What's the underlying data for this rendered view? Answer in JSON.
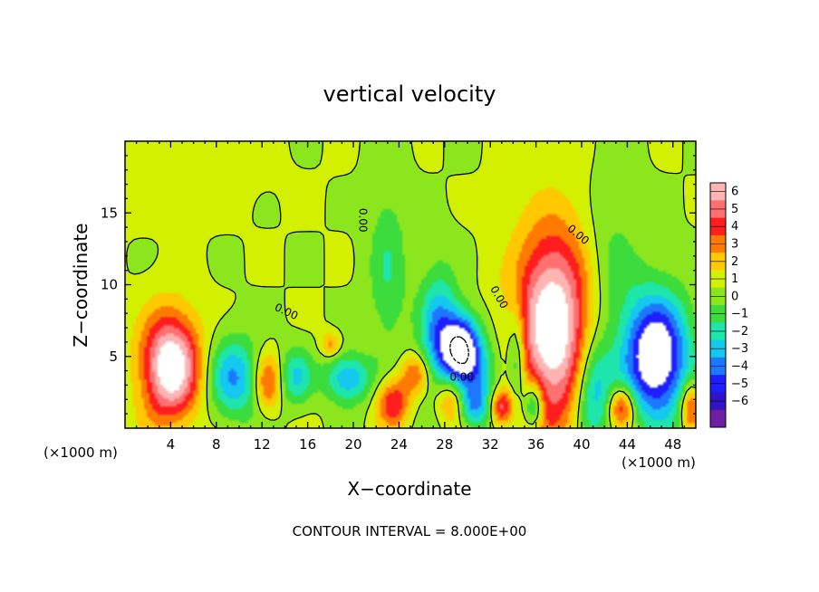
{
  "chart_data": {
    "type": "heatmap",
    "title": "vertical velocity",
    "xlabel": "X−coordinate",
    "ylabel": "Z−coordinate",
    "x_unit_left": "(×1000 m)",
    "x_unit_right": "(×1000 m)",
    "xlim": [
      0,
      50
    ],
    "ylim": [
      0,
      20
    ],
    "x_ticks": [
      4,
      8,
      12,
      16,
      20,
      24,
      28,
      32,
      36,
      40,
      44,
      48
    ],
    "y_ticks": [
      5,
      10,
      15
    ],
    "colorbar": {
      "levels": [
        6,
        5,
        4,
        3,
        2,
        1,
        0,
        -1,
        -2,
        -3,
        -4,
        -5,
        -6
      ],
      "labels": [
        "6",
        "5",
        "4",
        "3",
        "2",
        "1",
        "0",
        "−1",
        "−2",
        "−3",
        "−4",
        "−5",
        "−6"
      ],
      "colors": [
        "#ffb4b4",
        "#ff7070",
        "#ff1e1e",
        "#ff7a00",
        "#ffc800",
        "#d2f000",
        "#8ce61e",
        "#3cdc3c",
        "#1ee6aa",
        "#14c8f0",
        "#1e78ff",
        "#1e1eff",
        "#3214c8",
        "#6e1ea0"
      ]
    },
    "contour_label": "0.00",
    "footer": "CONTOUR INTERVAL = 8.000E+00",
    "features": [
      {
        "x": 4.0,
        "z": 4.3,
        "sx": 1.8,
        "sz": 2.6,
        "w": 7.5
      },
      {
        "x": 37.5,
        "z": 7.0,
        "sx": 2.4,
        "sz": 4.8,
        "w": 7.5
      },
      {
        "x": 29.5,
        "z": 5.6,
        "sx": 1.1,
        "sz": 1.6,
        "w": -7.0
      },
      {
        "x": 46.5,
        "z": 5.0,
        "sx": 2.0,
        "sz": 3.0,
        "w": -8.0
      },
      {
        "x": 9.5,
        "z": 3.5,
        "sx": 1.6,
        "sz": 2.0,
        "w": -4.0
      },
      {
        "x": 12.5,
        "z": 3.2,
        "sx": 0.8,
        "sz": 1.4,
        "w": 3.5
      },
      {
        "x": 15.0,
        "z": 3.6,
        "sx": 1.0,
        "sz": 1.4,
        "w": -3.0
      },
      {
        "x": 19.5,
        "z": 3.5,
        "sx": 1.4,
        "sz": 1.2,
        "w": -4.0
      },
      {
        "x": 18.0,
        "z": 5.8,
        "sx": 0.6,
        "sz": 0.6,
        "w": 2.5
      },
      {
        "x": 23.5,
        "z": 1.8,
        "sx": 1.0,
        "sz": 1.2,
        "w": 4.0
      },
      {
        "x": 25.5,
        "z": 3.8,
        "sx": 0.9,
        "sz": 1.0,
        "w": 3.0
      },
      {
        "x": 27.5,
        "z": 6.5,
        "sx": 1.2,
        "sz": 3.0,
        "w": -4.5
      },
      {
        "x": 28.5,
        "z": 2.0,
        "sx": 1.0,
        "sz": 1.2,
        "w": 3.5
      },
      {
        "x": 30.5,
        "z": 1.5,
        "sx": 0.9,
        "sz": 1.0,
        "w": -3.0
      },
      {
        "x": 31.0,
        "z": 3.5,
        "sx": 1.5,
        "sz": 2.0,
        "w": -3.0
      },
      {
        "x": 33.0,
        "z": 1.5,
        "sx": 0.7,
        "sz": 0.9,
        "w": 4.5
      },
      {
        "x": 34.3,
        "z": 4.8,
        "sx": 0.6,
        "sz": 2.5,
        "w": -3.5
      },
      {
        "x": 35.8,
        "z": 1.6,
        "sx": 0.6,
        "sz": 1.2,
        "w": -4.5
      },
      {
        "x": 41.0,
        "z": 2.8,
        "sx": 1.2,
        "sz": 2.5,
        "w": -4.5
      },
      {
        "x": 43.5,
        "z": 1.5,
        "sx": 0.8,
        "sz": 1.0,
        "w": 4.5
      },
      {
        "x": 42.5,
        "z": 11.0,
        "sx": 1.8,
        "sz": 4.0,
        "w": -1.5
      },
      {
        "x": 23.0,
        "z": 11.0,
        "sx": 1.2,
        "sz": 4.0,
        "w": -2.0
      },
      {
        "x": 49.5,
        "z": 1.5,
        "sx": 0.6,
        "sz": 1.2,
        "w": 4.0
      },
      {
        "x": 2.0,
        "z": 17.5,
        "sx": 6.0,
        "sz": 2.0,
        "w": 0.4
      }
    ]
  }
}
